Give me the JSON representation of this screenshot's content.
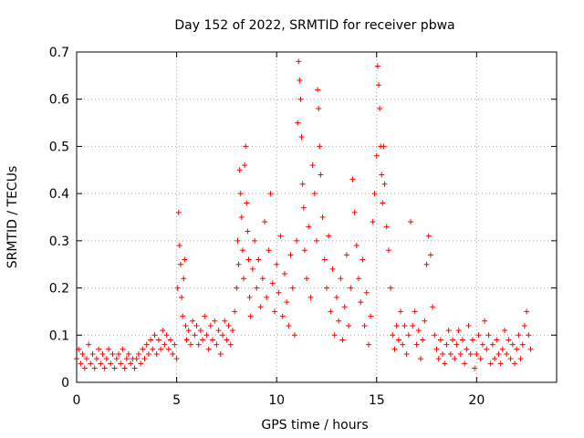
{
  "chart_data": {
    "type": "scatter",
    "title": "Day 152 of 2022, SRMTID for receiver pbwa",
    "xlabel": "GPS time / hours",
    "ylabel": "SRMTID / TECUs",
    "xlim": [
      0,
      24
    ],
    "ylim": [
      0,
      0.7
    ],
    "xticks": [
      0,
      5,
      10,
      15,
      20
    ],
    "xtick_labels": [
      "0",
      "5",
      "10",
      "15",
      "20"
    ],
    "yticks": [
      0,
      0.1,
      0.2,
      0.3,
      0.4,
      0.5,
      0.6,
      0.7
    ],
    "ytick_labels": [
      "0",
      "0.1",
      "0.2",
      "0.3",
      "0.4",
      "0.5",
      "0.6",
      "0.7"
    ],
    "grid": true,
    "marker": "+",
    "color": "#ff0000",
    "series": [
      {
        "name": "SRMTID",
        "points": [
          [
            0.0,
            0.05
          ],
          [
            0.1,
            0.07
          ],
          [
            0.2,
            0.04
          ],
          [
            0.3,
            0.06
          ],
          [
            0.4,
            0.03
          ],
          [
            0.5,
            0.05
          ],
          [
            0.6,
            0.08
          ],
          [
            0.7,
            0.04
          ],
          [
            0.8,
            0.06
          ],
          [
            0.9,
            0.03
          ],
          [
            1.0,
            0.05
          ],
          [
            1.1,
            0.07
          ],
          [
            1.2,
            0.04
          ],
          [
            1.3,
            0.06
          ],
          [
            1.4,
            0.03
          ],
          [
            1.5,
            0.05
          ],
          [
            1.6,
            0.07
          ],
          [
            1.7,
            0.04
          ],
          [
            1.8,
            0.06
          ],
          [
            1.9,
            0.03
          ],
          [
            2.0,
            0.05
          ],
          [
            2.1,
            0.06
          ],
          [
            2.2,
            0.04
          ],
          [
            2.3,
            0.07
          ],
          [
            2.4,
            0.03
          ],
          [
            2.5,
            0.05
          ],
          [
            2.6,
            0.06
          ],
          [
            2.7,
            0.04
          ],
          [
            2.8,
            0.05
          ],
          [
            2.9,
            0.03
          ],
          [
            3.0,
            0.05
          ],
          [
            3.1,
            0.06
          ],
          [
            3.2,
            0.04
          ],
          [
            3.3,
            0.07
          ],
          [
            3.4,
            0.05
          ],
          [
            3.5,
            0.08
          ],
          [
            3.6,
            0.06
          ],
          [
            3.7,
            0.09
          ],
          [
            3.8,
            0.07
          ],
          [
            3.9,
            0.1
          ],
          [
            4.0,
            0.06
          ],
          [
            4.1,
            0.09
          ],
          [
            4.2,
            0.07
          ],
          [
            4.3,
            0.11
          ],
          [
            4.4,
            0.08
          ],
          [
            4.5,
            0.1
          ],
          [
            4.6,
            0.07
          ],
          [
            4.7,
            0.09
          ],
          [
            4.8,
            0.06
          ],
          [
            4.9,
            0.08
          ],
          [
            5.0,
            0.05
          ],
          [
            5.05,
            0.2
          ],
          [
            5.1,
            0.36
          ],
          [
            5.15,
            0.29
          ],
          [
            5.2,
            0.25
          ],
          [
            5.25,
            0.18
          ],
          [
            5.3,
            0.14
          ],
          [
            5.35,
            0.22
          ],
          [
            5.4,
            0.26
          ],
          [
            5.45,
            0.12
          ],
          [
            5.5,
            0.09
          ],
          [
            5.6,
            0.11
          ],
          [
            5.7,
            0.08
          ],
          [
            5.8,
            0.13
          ],
          [
            5.9,
            0.1
          ],
          [
            6.0,
            0.12
          ],
          [
            6.1,
            0.08
          ],
          [
            6.2,
            0.11
          ],
          [
            6.3,
            0.09
          ],
          [
            6.4,
            0.14
          ],
          [
            6.5,
            0.1
          ],
          [
            6.6,
            0.07
          ],
          [
            6.7,
            0.12
          ],
          [
            6.8,
            0.09
          ],
          [
            6.9,
            0.13
          ],
          [
            7.0,
            0.08
          ],
          [
            7.1,
            0.11
          ],
          [
            7.2,
            0.06
          ],
          [
            7.3,
            0.1
          ],
          [
            7.4,
            0.13
          ],
          [
            7.5,
            0.09
          ],
          [
            7.6,
            0.12
          ],
          [
            7.7,
            0.08
          ],
          [
            7.8,
            0.11
          ],
          [
            7.9,
            0.15
          ],
          [
            8.0,
            0.2
          ],
          [
            8.05,
            0.3
          ],
          [
            8.1,
            0.25
          ],
          [
            8.15,
            0.45
          ],
          [
            8.2,
            0.4
          ],
          [
            8.25,
            0.35
          ],
          [
            8.3,
            0.28
          ],
          [
            8.35,
            0.22
          ],
          [
            8.4,
            0.46
          ],
          [
            8.45,
            0.5
          ],
          [
            8.5,
            0.38
          ],
          [
            8.55,
            0.32
          ],
          [
            8.6,
            0.26
          ],
          [
            8.65,
            0.18
          ],
          [
            8.7,
            0.14
          ],
          [
            8.8,
            0.24
          ],
          [
            8.9,
            0.3
          ],
          [
            9.0,
            0.2
          ],
          [
            9.1,
            0.26
          ],
          [
            9.2,
            0.16
          ],
          [
            9.3,
            0.22
          ],
          [
            9.4,
            0.34
          ],
          [
            9.5,
            0.18
          ],
          [
            9.6,
            0.28
          ],
          [
            9.7,
            0.4
          ],
          [
            9.8,
            0.21
          ],
          [
            9.9,
            0.15
          ],
          [
            10.0,
            0.25
          ],
          [
            10.1,
            0.19
          ],
          [
            10.2,
            0.31
          ],
          [
            10.3,
            0.14
          ],
          [
            10.4,
            0.23
          ],
          [
            10.5,
            0.17
          ],
          [
            10.6,
            0.12
          ],
          [
            10.7,
            0.27
          ],
          [
            10.8,
            0.2
          ],
          [
            10.9,
            0.1
          ],
          [
            11.0,
            0.3
          ],
          [
            11.05,
            0.55
          ],
          [
            11.1,
            0.68
          ],
          [
            11.15,
            0.64
          ],
          [
            11.2,
            0.6
          ],
          [
            11.25,
            0.52
          ],
          [
            11.3,
            0.42
          ],
          [
            11.35,
            0.37
          ],
          [
            11.4,
            0.28
          ],
          [
            11.5,
            0.22
          ],
          [
            11.6,
            0.33
          ],
          [
            11.7,
            0.18
          ],
          [
            11.8,
            0.46
          ],
          [
            11.9,
            0.4
          ],
          [
            12.0,
            0.3
          ],
          [
            12.05,
            0.62
          ],
          [
            12.1,
            0.58
          ],
          [
            12.15,
            0.5
          ],
          [
            12.2,
            0.44
          ],
          [
            12.3,
            0.35
          ],
          [
            12.4,
            0.26
          ],
          [
            12.5,
            0.2
          ],
          [
            12.6,
            0.31
          ],
          [
            12.7,
            0.15
          ],
          [
            12.8,
            0.24
          ],
          [
            12.9,
            0.1
          ],
          [
            13.0,
            0.18
          ],
          [
            13.1,
            0.13
          ],
          [
            13.2,
            0.22
          ],
          [
            13.3,
            0.09
          ],
          [
            13.4,
            0.16
          ],
          [
            13.5,
            0.27
          ],
          [
            13.6,
            0.12
          ],
          [
            13.7,
            0.2
          ],
          [
            13.8,
            0.43
          ],
          [
            13.9,
            0.36
          ],
          [
            14.0,
            0.29
          ],
          [
            14.1,
            0.22
          ],
          [
            14.2,
            0.17
          ],
          [
            14.3,
            0.26
          ],
          [
            14.4,
            0.12
          ],
          [
            14.5,
            0.19
          ],
          [
            14.6,
            0.08
          ],
          [
            14.7,
            0.14
          ],
          [
            14.8,
            0.34
          ],
          [
            14.9,
            0.4
          ],
          [
            15.0,
            0.48
          ],
          [
            15.05,
            0.67
          ],
          [
            15.1,
            0.63
          ],
          [
            15.15,
            0.58
          ],
          [
            15.2,
            0.5
          ],
          [
            15.25,
            0.44
          ],
          [
            15.3,
            0.38
          ],
          [
            15.35,
            0.5
          ],
          [
            15.4,
            0.42
          ],
          [
            15.5,
            0.33
          ],
          [
            15.6,
            0.28
          ],
          [
            15.7,
            0.2
          ],
          [
            15.8,
            0.1
          ],
          [
            15.9,
            0.07
          ],
          [
            16.0,
            0.12
          ],
          [
            16.1,
            0.09
          ],
          [
            16.2,
            0.15
          ],
          [
            16.3,
            0.08
          ],
          [
            16.4,
            0.12
          ],
          [
            16.5,
            0.06
          ],
          [
            16.6,
            0.1
          ],
          [
            16.7,
            0.34
          ],
          [
            16.8,
            0.12
          ],
          [
            16.9,
            0.15
          ],
          [
            17.0,
            0.08
          ],
          [
            17.1,
            0.11
          ],
          [
            17.2,
            0.05
          ],
          [
            17.3,
            0.09
          ],
          [
            17.4,
            0.13
          ],
          [
            17.5,
            0.25
          ],
          [
            17.6,
            0.31
          ],
          [
            17.7,
            0.27
          ],
          [
            17.8,
            0.16
          ],
          [
            17.9,
            0.1
          ],
          [
            18.0,
            0.07
          ],
          [
            18.1,
            0.05
          ],
          [
            18.2,
            0.09
          ],
          [
            18.3,
            0.06
          ],
          [
            18.4,
            0.04
          ],
          [
            18.5,
            0.08
          ],
          [
            18.6,
            0.11
          ],
          [
            18.7,
            0.06
          ],
          [
            18.8,
            0.09
          ],
          [
            18.9,
            0.05
          ],
          [
            19.0,
            0.08
          ],
          [
            19.1,
            0.11
          ],
          [
            19.2,
            0.06
          ],
          [
            19.3,
            0.09
          ],
          [
            19.4,
            0.04
          ],
          [
            19.5,
            0.07
          ],
          [
            19.6,
            0.12
          ],
          [
            19.7,
            0.06
          ],
          [
            19.8,
            0.09
          ],
          [
            19.9,
            0.03
          ],
          [
            20.0,
            0.06
          ],
          [
            20.1,
            0.1
          ],
          [
            20.2,
            0.05
          ],
          [
            20.3,
            0.08
          ],
          [
            20.4,
            0.13
          ],
          [
            20.5,
            0.07
          ],
          [
            20.6,
            0.1
          ],
          [
            20.7,
            0.04
          ],
          [
            20.8,
            0.08
          ],
          [
            20.9,
            0.05
          ],
          [
            21.0,
            0.09
          ],
          [
            21.1,
            0.06
          ],
          [
            21.2,
            0.04
          ],
          [
            21.3,
            0.07
          ],
          [
            21.4,
            0.11
          ],
          [
            21.5,
            0.06
          ],
          [
            21.6,
            0.09
          ],
          [
            21.7,
            0.05
          ],
          [
            21.8,
            0.08
          ],
          [
            21.9,
            0.04
          ],
          [
            22.0,
            0.07
          ],
          [
            22.1,
            0.1
          ],
          [
            22.2,
            0.05
          ],
          [
            22.3,
            0.08
          ],
          [
            22.4,
            0.12
          ],
          [
            22.5,
            0.15
          ],
          [
            22.6,
            0.1
          ],
          [
            22.7,
            0.07
          ]
        ]
      }
    ]
  }
}
